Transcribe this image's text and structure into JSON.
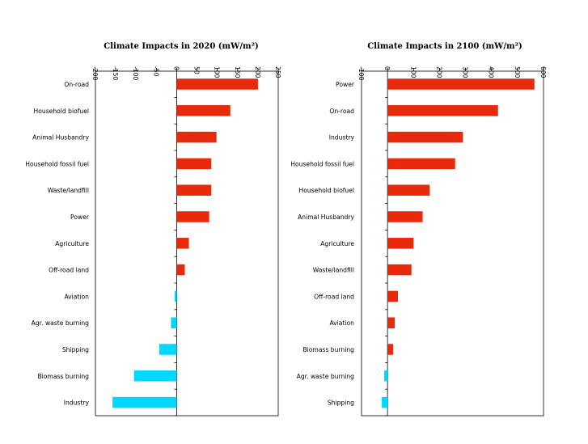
{
  "colors": {
    "positive": "#e8290b",
    "negative": "#00d8ff"
  },
  "chart_data": [
    {
      "type": "bar",
      "orientation": "horizontal",
      "title": "Climate Impacts in 2020 (mW/m²)",
      "xlim": [
        -200,
        250
      ],
      "ticks": [
        -200,
        -150,
        -100,
        -50,
        0,
        50,
        100,
        150,
        200,
        250
      ],
      "tick_labels": [
        "-200",
        "-150",
        "-100",
        "-50",
        "0",
        "50",
        "100",
        "150",
        "200",
        "250"
      ],
      "grid": false,
      "categories": [
        "On-road",
        "Household biofuel",
        "Animal Husbandry",
        "Household fossil fuel",
        "Waste/landfill",
        "Power",
        "Agriculture",
        "Off-road land",
        "Aviation",
        "Agr. waste burning",
        "Shipping",
        "Biomass burning",
        "Industry"
      ],
      "values": [
        200,
        132,
        98,
        85,
        85,
        80,
        30,
        20,
        -5,
        -14,
        -43,
        -105,
        -158
      ]
    },
    {
      "type": "bar",
      "orientation": "horizontal",
      "title": "Climate Impacts in 2100 (mW/m²)",
      "xlim": [
        -100,
        600
      ],
      "ticks": [
        -100,
        0,
        100,
        200,
        300,
        400,
        500,
        600
      ],
      "tick_labels": [
        "-100",
        "0",
        "100",
        "200",
        "300",
        "400",
        "500",
        "600"
      ],
      "grid": false,
      "categories": [
        "Power",
        "On-road",
        "Industry",
        "Household fossil fuel",
        "Household biofuel",
        "Animal Husbandry",
        "Agriculture",
        "Waste/landfill",
        "Off-road land",
        "Aviation",
        "Biomass burning",
        "Agr. waste burning",
        "Shipping"
      ],
      "values": [
        565,
        425,
        290,
        260,
        162,
        135,
        100,
        92,
        40,
        28,
        22,
        -13,
        -22
      ]
    }
  ]
}
